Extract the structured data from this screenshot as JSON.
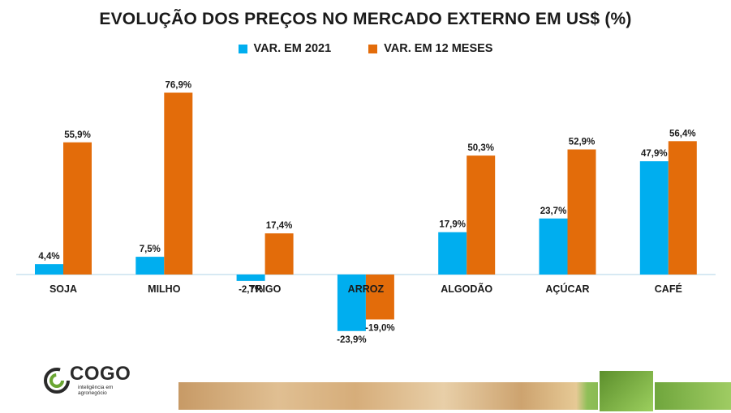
{
  "chart_data": {
    "type": "bar",
    "title": "EVOLUÇÃO DOS PREÇOS NO MERCADO EXTERNO EM US$ (%)",
    "categories": [
      "SOJA",
      "MILHO",
      "TRIGO",
      "ARROZ",
      "ALGODÃO",
      "AÇÚCAR",
      "CAFÉ"
    ],
    "series": [
      {
        "name": "VAR. EM 2021",
        "values": [
          4.4,
          7.5,
          -2.7,
          -23.9,
          17.9,
          23.7,
          47.9
        ],
        "labels": [
          "4,4%",
          "7,5%",
          "-2,7%",
          "-23,9%",
          "17,9%",
          "23,7%",
          "47,9%"
        ],
        "color": "#00AEEF"
      },
      {
        "name": "VAR. EM 12 MESES",
        "values": [
          55.9,
          76.9,
          17.4,
          -19.0,
          50.3,
          52.9,
          56.4
        ],
        "labels": [
          "55,9%",
          "76,9%",
          "17,4%",
          "-19,0%",
          "50,3%",
          "52,9%",
          "56,4%"
        ],
        "color": "#E36C0A"
      }
    ],
    "ylim": [
      -25,
      80
    ],
    "grid": false,
    "legend_position": "top-center"
  },
  "logo": {
    "name": "COGO",
    "tagline": "inteligência em agronegócio"
  },
  "colors": {
    "axis_line": "#BFDCEC"
  }
}
